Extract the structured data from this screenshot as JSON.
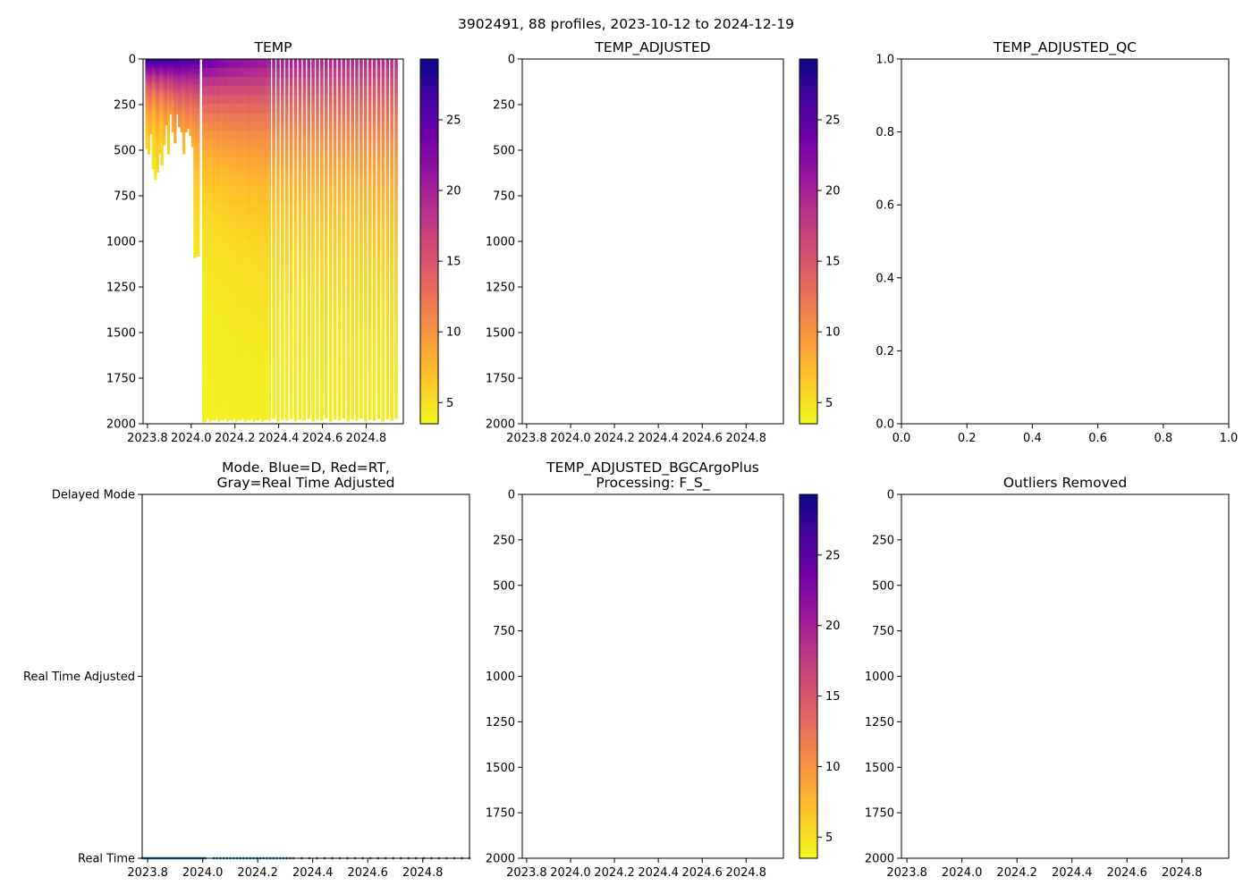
{
  "chart_data": {
    "suptitle": "3902491, 88 profiles, 2023-10-12 to 2024-12-19",
    "colors": {
      "profile_dots": "#1f77b4",
      "axis": "#000000"
    },
    "colormap": {
      "name": "plasma_r",
      "stops": [
        "#f0f921",
        "#fdca26",
        "#fb9f3a",
        "#ed7953",
        "#d8576b",
        "#bd3786",
        "#9c179e",
        "#7201a8",
        "#46039f",
        "#0d0887"
      ]
    },
    "panels": [
      {
        "id": "temp",
        "type": "heatmap",
        "title": "TEMP",
        "x_ticks": [
          "2023.8",
          "2024.0",
          "2024.2",
          "2024.4",
          "2024.6",
          "2024.8"
        ],
        "y_ticks": [
          "0",
          "250",
          "500",
          "750",
          "1000",
          "1250",
          "1500",
          "1750",
          "2000"
        ],
        "xlim": [
          2023.78,
          2024.97
        ],
        "ylim": [
          2000,
          0
        ],
        "colorbar": {
          "ticks": [
            "5",
            "10",
            "15",
            "20",
            "25"
          ],
          "range": [
            3.5,
            29.3
          ]
        }
      },
      {
        "id": "temp_adjusted",
        "type": "heatmap",
        "title": "TEMP_ADJUSTED",
        "x_ticks": [
          "2023.8",
          "2024.0",
          "2024.2",
          "2024.4",
          "2024.6",
          "2024.8"
        ],
        "y_ticks": [
          "0",
          "250",
          "500",
          "750",
          "1000",
          "1250",
          "1500",
          "1750",
          "2000"
        ],
        "xlim": [
          2023.78,
          2024.97
        ],
        "ylim": [
          2000,
          0
        ],
        "colorbar": {
          "ticks": [
            "5",
            "10",
            "15",
            "20",
            "25"
          ],
          "range": [
            3.5,
            29.3
          ]
        },
        "empty": true
      },
      {
        "id": "temp_adjusted_qc",
        "type": "scatter",
        "title": "TEMP_ADJUSTED_QC",
        "x_ticks": [
          "0.0",
          "0.2",
          "0.4",
          "0.6",
          "0.8",
          "1.0"
        ],
        "y_ticks": [
          "0.0",
          "0.2",
          "0.4",
          "0.6",
          "0.8",
          "1.0"
        ],
        "xlim": [
          0,
          1
        ],
        "ylim": [
          0,
          1
        ],
        "empty": true
      },
      {
        "id": "mode",
        "type": "scatter",
        "title_lines": [
          "Mode. Blue=D, Red=RT,",
          "Gray=Real Time Adjusted"
        ],
        "x_ticks": [
          "2023.8",
          "2024.0",
          "2024.2",
          "2024.4",
          "2024.6",
          "2024.8"
        ],
        "y_ticks": [
          "Delayed Mode",
          "Real Time Adjusted",
          "Real Time"
        ],
        "xlim": [
          2023.78,
          2024.97
        ],
        "series": [
          {
            "name": "Real Time",
            "level": "Real Time",
            "x_start": 2023.78,
            "x_end": 2024.97,
            "profiles": 88
          }
        ]
      },
      {
        "id": "bgc_plus",
        "type": "heatmap",
        "title_lines": [
          "TEMP_ADJUSTED_BGCArgoPlus",
          "Processing: F_S_"
        ],
        "x_ticks": [
          "2023.8",
          "2024.0",
          "2024.2",
          "2024.4",
          "2024.6",
          "2024.8"
        ],
        "y_ticks": [
          "0",
          "250",
          "500",
          "750",
          "1000",
          "1250",
          "1500",
          "1750",
          "2000"
        ],
        "xlim": [
          2023.78,
          2024.97
        ],
        "ylim": [
          2000,
          0
        ],
        "colorbar": {
          "ticks": [
            "5",
            "10",
            "15",
            "20",
            "25"
          ],
          "range": [
            3.5,
            29.3
          ]
        },
        "empty": true
      },
      {
        "id": "outliers",
        "type": "scatter",
        "title": "Outliers Removed",
        "x_ticks": [
          "2023.8",
          "2024.0",
          "2024.2",
          "2024.4",
          "2024.6",
          "2024.8"
        ],
        "y_ticks": [
          "0",
          "250",
          "500",
          "750",
          "1000",
          "1250",
          "1500",
          "1750",
          "2000"
        ],
        "xlim": [
          2023.78,
          2024.97
        ],
        "ylim": [
          2000,
          0
        ],
        "empty": true
      }
    ],
    "temp_profiles": [
      {
        "t": 2023.79,
        "max_depth": 490,
        "surface_temp": 28.5,
        "thermocline_depth": 110
      },
      {
        "t": 2023.8,
        "max_depth": 520,
        "surface_temp": 28.4,
        "thermocline_depth": 120
      },
      {
        "t": 2023.81,
        "max_depth": 410,
        "surface_temp": 28.2,
        "thermocline_depth": 130
      },
      {
        "t": 2023.82,
        "max_depth": 600,
        "surface_temp": 28.4,
        "thermocline_depth": 100
      },
      {
        "t": 2023.83,
        "max_depth": 660,
        "surface_temp": 28.6,
        "thermocline_depth": 110
      },
      {
        "t": 2023.84,
        "max_depth": 620,
        "surface_temp": 28.3,
        "thermocline_depth": 140
      },
      {
        "t": 2023.85,
        "max_depth": 520,
        "surface_temp": 28.1,
        "thermocline_depth": 120
      },
      {
        "t": 2023.86,
        "max_depth": 580,
        "surface_temp": 28.2,
        "thermocline_depth": 110
      },
      {
        "t": 2023.87,
        "max_depth": 470,
        "surface_temp": 28.0,
        "thermocline_depth": 130
      },
      {
        "t": 2023.88,
        "max_depth": 360,
        "surface_temp": 27.9,
        "thermocline_depth": 150
      },
      {
        "t": 2023.89,
        "max_depth": 520,
        "surface_temp": 28.0,
        "thermocline_depth": 120
      },
      {
        "t": 2023.9,
        "max_depth": 300,
        "surface_temp": 27.7,
        "thermocline_depth": 140
      },
      {
        "t": 2023.91,
        "max_depth": 400,
        "surface_temp": 27.8,
        "thermocline_depth": 130
      },
      {
        "t": 2023.92,
        "max_depth": 460,
        "surface_temp": 27.6,
        "thermocline_depth": 160
      },
      {
        "t": 2023.93,
        "max_depth": 300,
        "surface_temp": 27.5,
        "thermocline_depth": 150
      },
      {
        "t": 2023.94,
        "max_depth": 370,
        "surface_temp": 27.4,
        "thermocline_depth": 170
      },
      {
        "t": 2023.95,
        "max_depth": 400,
        "surface_temp": 27.3,
        "thermocline_depth": 160
      },
      {
        "t": 2023.96,
        "max_depth": 520,
        "surface_temp": 27.1,
        "thermocline_depth": 150
      },
      {
        "t": 2023.97,
        "max_depth": 400,
        "surface_temp": 27.0,
        "thermocline_depth": 170
      },
      {
        "t": 2023.98,
        "max_depth": 380,
        "surface_temp": 26.8,
        "thermocline_depth": 180
      },
      {
        "t": 2023.99,
        "max_depth": 420,
        "surface_temp": 26.7,
        "thermocline_depth": 160
      },
      {
        "t": 2024.0,
        "max_depth": 480,
        "surface_temp": 26.5,
        "thermocline_depth": 170
      },
      {
        "t": 2024.01,
        "max_depth": 1090,
        "surface_temp": 26.3,
        "thermocline_depth": 180
      },
      {
        "t": 2024.02,
        "max_depth": 1080,
        "surface_temp": 26.0,
        "thermocline_depth": 190
      },
      {
        "t": 2024.05,
        "max_depth": 1990,
        "surface_temp": 25.4,
        "thermocline_depth": 200
      },
      {
        "t": 2024.07,
        "max_depth": 1970,
        "surface_temp": 25.0,
        "thermocline_depth": 210
      },
      {
        "t": 2024.08,
        "max_depth": 1985,
        "surface_temp": 24.8,
        "thermocline_depth": 200
      },
      {
        "t": 2024.09,
        "max_depth": 1975,
        "surface_temp": 24.5,
        "thermocline_depth": 210
      },
      {
        "t": 2024.1,
        "max_depth": 1980,
        "surface_temp": 24.2,
        "thermocline_depth": 220
      },
      {
        "t": 2024.11,
        "max_depth": 1970,
        "surface_temp": 24.0,
        "thermocline_depth": 210
      },
      {
        "t": 2024.12,
        "max_depth": 1985,
        "surface_temp": 23.8,
        "thermocline_depth": 230
      },
      {
        "t": 2024.13,
        "max_depth": 1975,
        "surface_temp": 23.5,
        "thermocline_depth": 220
      },
      {
        "t": 2024.14,
        "max_depth": 1980,
        "surface_temp": 23.3,
        "thermocline_depth": 230
      },
      {
        "t": 2024.15,
        "max_depth": 1970,
        "surface_temp": 23.2,
        "thermocline_depth": 240
      },
      {
        "t": 2024.16,
        "max_depth": 1985,
        "surface_temp": 23.0,
        "thermocline_depth": 230
      },
      {
        "t": 2024.17,
        "max_depth": 1975,
        "surface_temp": 22.8,
        "thermocline_depth": 240
      },
      {
        "t": 2024.18,
        "max_depth": 1980,
        "surface_temp": 22.7,
        "thermocline_depth": 250
      },
      {
        "t": 2024.19,
        "max_depth": 1970,
        "surface_temp": 22.6,
        "thermocline_depth": 240
      },
      {
        "t": 2024.2,
        "max_depth": 1985,
        "surface_temp": 22.5,
        "thermocline_depth": 250
      },
      {
        "t": 2024.21,
        "max_depth": 1975,
        "surface_temp": 22.4,
        "thermocline_depth": 260
      },
      {
        "t": 2024.22,
        "max_depth": 1980,
        "surface_temp": 22.3,
        "thermocline_depth": 250
      },
      {
        "t": 2024.23,
        "max_depth": 1970,
        "surface_temp": 22.2,
        "thermocline_depth": 260
      },
      {
        "t": 2024.24,
        "max_depth": 1985,
        "surface_temp": 22.1,
        "thermocline_depth": 250
      },
      {
        "t": 2024.25,
        "max_depth": 1975,
        "surface_temp": 22.0,
        "thermocline_depth": 260
      },
      {
        "t": 2024.26,
        "max_depth": 1980,
        "surface_temp": 21.9,
        "thermocline_depth": 270
      },
      {
        "t": 2024.27,
        "max_depth": 1970,
        "surface_temp": 21.8,
        "thermocline_depth": 260
      },
      {
        "t": 2024.28,
        "max_depth": 1985,
        "surface_temp": 21.7,
        "thermocline_depth": 270
      },
      {
        "t": 2024.29,
        "max_depth": 1975,
        "surface_temp": 21.6,
        "thermocline_depth": 260
      },
      {
        "t": 2024.3,
        "max_depth": 1980,
        "surface_temp": 21.5,
        "thermocline_depth": 270
      },
      {
        "t": 2024.31,
        "max_depth": 1970,
        "surface_temp": 21.4,
        "thermocline_depth": 280
      },
      {
        "t": 2024.32,
        "max_depth": 1985,
        "surface_temp": 21.3,
        "thermocline_depth": 270
      },
      {
        "t": 2024.33,
        "max_depth": 1975,
        "surface_temp": 21.2,
        "thermocline_depth": 280
      },
      {
        "t": 2024.35,
        "max_depth": 1980,
        "surface_temp": 21.0,
        "thermocline_depth": 280
      },
      {
        "t": 2024.37,
        "max_depth": 1970,
        "surface_temp": 20.9,
        "thermocline_depth": 290
      },
      {
        "t": 2024.39,
        "max_depth": 1985,
        "surface_temp": 20.8,
        "thermocline_depth": 280
      },
      {
        "t": 2024.41,
        "max_depth": 1975,
        "surface_temp": 20.7,
        "thermocline_depth": 290
      },
      {
        "t": 2024.43,
        "max_depth": 1980,
        "surface_temp": 20.6,
        "thermocline_depth": 290
      },
      {
        "t": 2024.45,
        "max_depth": 1970,
        "surface_temp": 20.5,
        "thermocline_depth": 300
      },
      {
        "t": 2024.47,
        "max_depth": 1985,
        "surface_temp": 20.4,
        "thermocline_depth": 290
      },
      {
        "t": 2024.49,
        "max_depth": 1975,
        "surface_temp": 20.3,
        "thermocline_depth": 300
      },
      {
        "t": 2024.51,
        "max_depth": 1980,
        "surface_temp": 20.2,
        "thermocline_depth": 300
      },
      {
        "t": 2024.53,
        "max_depth": 1970,
        "surface_temp": 20.1,
        "thermocline_depth": 310
      },
      {
        "t": 2024.55,
        "max_depth": 1985,
        "surface_temp": 20.0,
        "thermocline_depth": 300
      },
      {
        "t": 2024.57,
        "max_depth": 1975,
        "surface_temp": 19.9,
        "thermocline_depth": 310
      },
      {
        "t": 2024.59,
        "max_depth": 1980,
        "surface_temp": 19.8,
        "thermocline_depth": 310
      },
      {
        "t": 2024.61,
        "max_depth": 1970,
        "surface_temp": 19.8,
        "thermocline_depth": 320
      },
      {
        "t": 2024.63,
        "max_depth": 1985,
        "surface_temp": 19.7,
        "thermocline_depth": 310
      },
      {
        "t": 2024.65,
        "max_depth": 1975,
        "surface_temp": 19.6,
        "thermocline_depth": 320
      },
      {
        "t": 2024.67,
        "max_depth": 1980,
        "surface_temp": 19.6,
        "thermocline_depth": 320
      },
      {
        "t": 2024.69,
        "max_depth": 1970,
        "surface_temp": 19.5,
        "thermocline_depth": 330
      },
      {
        "t": 2024.71,
        "max_depth": 1985,
        "surface_temp": 19.4,
        "thermocline_depth": 320
      },
      {
        "t": 2024.73,
        "max_depth": 1975,
        "surface_temp": 19.4,
        "thermocline_depth": 330
      },
      {
        "t": 2024.75,
        "max_depth": 1980,
        "surface_temp": 19.3,
        "thermocline_depth": 330
      },
      {
        "t": 2024.77,
        "max_depth": 1970,
        "surface_temp": 19.3,
        "thermocline_depth": 340
      },
      {
        "t": 2024.79,
        "max_depth": 1985,
        "surface_temp": 19.2,
        "thermocline_depth": 330
      },
      {
        "t": 2024.81,
        "max_depth": 1975,
        "surface_temp": 19.2,
        "thermocline_depth": 340
      },
      {
        "t": 2024.83,
        "max_depth": 1980,
        "surface_temp": 19.1,
        "thermocline_depth": 340
      },
      {
        "t": 2024.85,
        "max_depth": 1970,
        "surface_temp": 19.1,
        "thermocline_depth": 350
      },
      {
        "t": 2024.87,
        "max_depth": 1985,
        "surface_temp": 19.0,
        "thermocline_depth": 340
      },
      {
        "t": 2024.89,
        "max_depth": 1975,
        "surface_temp": 19.0,
        "thermocline_depth": 350
      },
      {
        "t": 2024.91,
        "max_depth": 1980,
        "surface_temp": 18.9,
        "thermocline_depth": 350
      },
      {
        "t": 2024.93,
        "max_depth": 1970,
        "surface_temp": 18.9,
        "thermocline_depth": 360
      }
    ]
  }
}
